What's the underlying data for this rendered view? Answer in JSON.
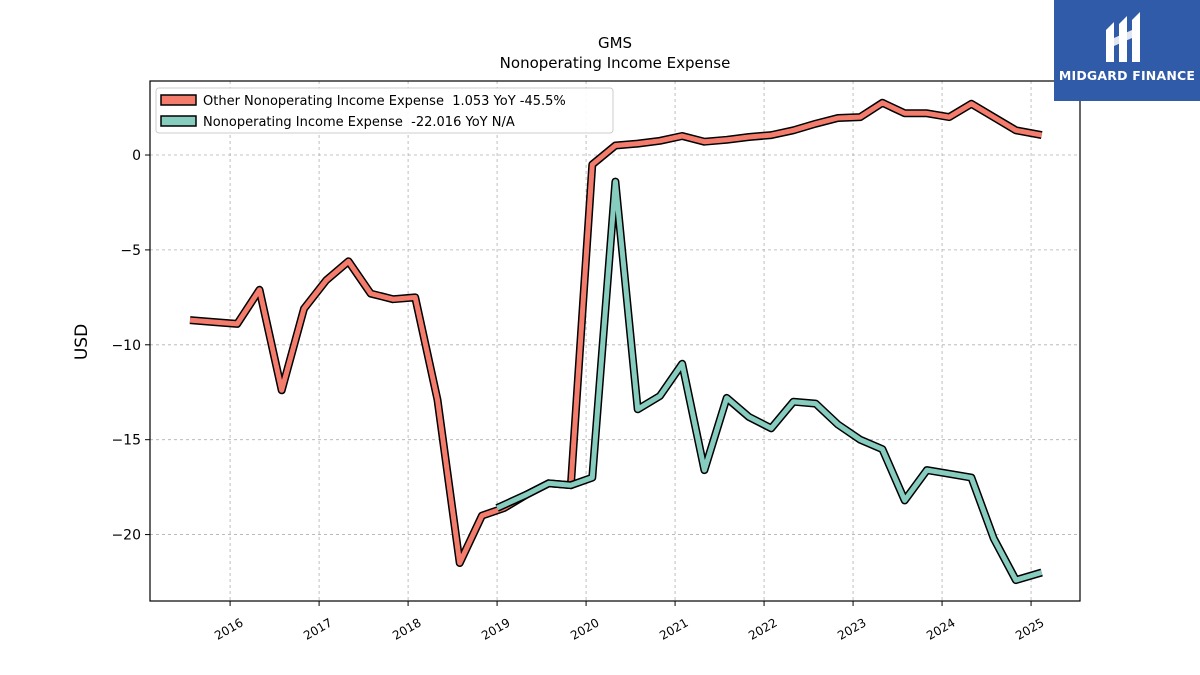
{
  "brand": {
    "name": "MIDGARD FINANCE",
    "bg_color": "#2f5ba8"
  },
  "chart_data": {
    "type": "line",
    "title": "GMS",
    "subtitle": "Nonoperating Income Expense",
    "xlabel": "",
    "ylabel": "USD",
    "grid": true,
    "legend_position": "top-left",
    "xlim": [
      2015.1,
      2025.55
    ],
    "ylim": [
      -23.5,
      3.9
    ],
    "x_ticks": [
      2016,
      2017,
      2018,
      2019,
      2020,
      2021,
      2022,
      2023,
      2024,
      2025
    ],
    "x_tick_labels": [
      "2016",
      "2017",
      "2018",
      "2019",
      "2020",
      "2021",
      "2022",
      "2023",
      "2024",
      "2025"
    ],
    "y_ticks": [
      0,
      -5,
      -10,
      -15,
      -20
    ],
    "y_tick_labels": [
      "0",
      "−5",
      "−10",
      "−15",
      "−20"
    ],
    "series": [
      {
        "name": "Other Nonoperating Income Expense",
        "legend_label": "Other Nonoperating Income Expense  1.053 YoY -45.5%",
        "color": "#f47c6c",
        "x": [
          2015.55,
          2015.81,
          2016.08,
          2016.33,
          2016.58,
          2016.83,
          2017.08,
          2017.33,
          2017.58,
          2017.83,
          2018.08,
          2018.33,
          2018.58,
          2018.83,
          2019.08,
          2019.33,
          2019.58,
          2019.83,
          2020.07,
          2020.33,
          2020.58,
          2020.83,
          2021.08,
          2021.33,
          2021.58,
          2021.83,
          2022.08,
          2022.33,
          2022.58,
          2022.83,
          2023.08,
          2023.33,
          2023.58,
          2023.83,
          2024.08,
          2024.33,
          2024.58,
          2024.83,
          2025.12
        ],
        "values": [
          -8.7,
          -8.8,
          -8.9,
          -7.1,
          -12.4,
          -8.1,
          -6.6,
          -5.6,
          -7.3,
          -7.6,
          -7.5,
          -12.9,
          -21.5,
          -19.0,
          -18.6,
          -17.9,
          -17.3,
          -17.4,
          -0.5,
          0.5,
          0.6,
          0.75,
          1.0,
          0.7,
          0.8,
          0.95,
          1.05,
          1.3,
          1.65,
          1.95,
          2.0,
          2.75,
          2.2,
          2.2,
          2.0,
          2.7,
          2.0,
          1.3,
          1.05
        ]
      },
      {
        "name": "Nonoperating Income Expense",
        "legend_label": "Nonoperating Income Expense  -22.016 YoY N/A",
        "color": "#86cdc0",
        "x": [
          2019.0,
          2019.33,
          2019.58,
          2019.83,
          2020.07,
          2020.33,
          2020.58,
          2020.83,
          2021.08,
          2021.33,
          2021.58,
          2021.83,
          2022.08,
          2022.33,
          2022.58,
          2022.83,
          2023.08,
          2023.33,
          2023.58,
          2023.83,
          2024.08,
          2024.33,
          2024.58,
          2024.83,
          2025.12
        ],
        "values": [
          -18.6,
          -17.9,
          -17.3,
          -17.4,
          -17.0,
          -1.4,
          -13.4,
          -12.7,
          -11.0,
          -16.6,
          -12.8,
          -13.8,
          -14.4,
          -13.0,
          -13.1,
          -14.2,
          -15.0,
          -15.5,
          -18.2,
          -16.6,
          -16.8,
          -17.0,
          -20.2,
          -22.4,
          -22.0
        ]
      }
    ]
  }
}
